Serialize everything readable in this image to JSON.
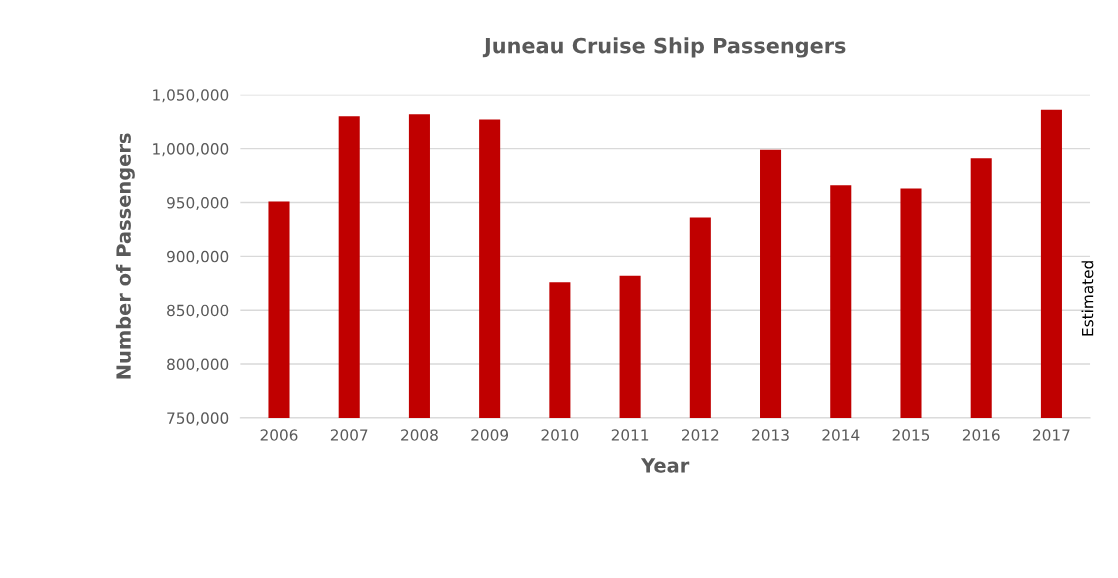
{
  "chart_data": {
    "type": "bar",
    "title": "Juneau Cruise Ship Passengers",
    "xlabel": "Year",
    "ylabel": "Number of Passengers",
    "categories": [
      "2006",
      "2007",
      "2008",
      "2009",
      "2010",
      "2011",
      "2012",
      "2013",
      "2014",
      "2015",
      "2016",
      "2017"
    ],
    "values": [
      951000,
      1030000,
      1032000,
      1027000,
      876000,
      882000,
      936000,
      999000,
      966000,
      963000,
      991000,
      1036000
    ],
    "color": "#c00000",
    "ylim": [
      750000,
      1050000
    ],
    "yticks": [
      {
        "value": 750000,
        "label": "750,000"
      },
      {
        "value": 800000,
        "label": "800,000"
      },
      {
        "value": 850000,
        "label": "850,000"
      },
      {
        "value": 900000,
        "label": "900,000"
      },
      {
        "value": 950000,
        "label": "950,000"
      },
      {
        "value": 1000000,
        "label": "1,000,000"
      },
      {
        "value": 1050000,
        "label": "1,050,000"
      }
    ],
    "grid": "y",
    "annotations": [
      "Estimated"
    ]
  }
}
